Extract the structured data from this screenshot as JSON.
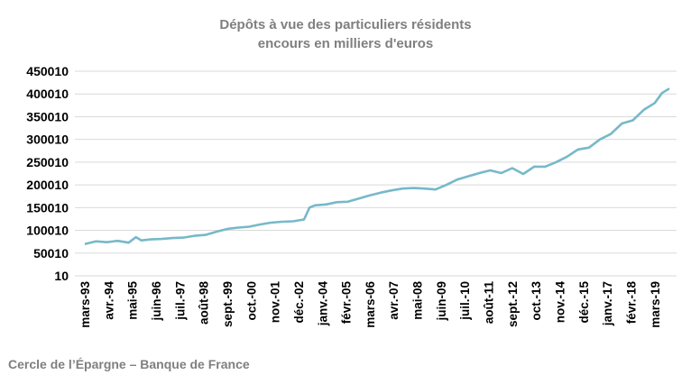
{
  "chart_data": {
    "type": "line",
    "title": "Dépôts à vue des particuliers résidents",
    "subtitle": "encours en milliers d'euros",
    "xlabel": "",
    "ylabel": "",
    "ylim": [
      10,
      450010
    ],
    "yticks": [
      "10",
      "50010",
      "100010",
      "150010",
      "200010",
      "250010",
      "300010",
      "350010",
      "400010",
      "450010"
    ],
    "xtick_labels": [
      "mars-93",
      "avr.-94",
      "mai-95",
      "juin-96",
      "juil.-97",
      "août-98",
      "sept.-99",
      "oct.-00",
      "nov.-01",
      "déc.-02",
      "janv.-04",
      "févr.-05",
      "mars-06",
      "avr.-07",
      "mai-08",
      "juin-09",
      "juil.-10",
      "août-11",
      "sept.-12",
      "oct.-13",
      "nov.-14",
      "déc.-15",
      "janv.-17",
      "févr.-18",
      "mars-19"
    ],
    "grid": true,
    "legend": "none",
    "line_color": "#76b9c9",
    "series": [
      {
        "x": [
          "1993-03",
          "1993-09",
          "1994-03",
          "1994-09",
          "1995-03",
          "1995-07",
          "1995-10",
          "1996-03",
          "1996-09",
          "1997-03",
          "1997-09",
          "1998-03",
          "1998-09",
          "1999-03",
          "1999-09",
          "2000-03",
          "2000-09",
          "2001-03",
          "2001-09",
          "2002-03",
          "2002-09",
          "2003-03",
          "2003-06",
          "2003-09",
          "2004-03",
          "2004-09",
          "2005-03",
          "2005-09",
          "2006-03",
          "2006-09",
          "2007-03",
          "2007-09",
          "2008-03",
          "2008-09",
          "2009-03",
          "2009-09",
          "2010-03",
          "2010-09",
          "2011-03",
          "2011-09",
          "2012-03",
          "2012-09",
          "2013-03",
          "2013-09",
          "2014-03",
          "2014-09",
          "2015-03",
          "2015-09",
          "2016-03",
          "2016-09",
          "2017-03",
          "2017-09",
          "2018-03",
          "2018-09",
          "2019-03",
          "2019-07",
          "2019-11"
        ],
        "values": [
          70000,
          76000,
          74000,
          77000,
          73000,
          85000,
          78000,
          80000,
          81000,
          83000,
          84000,
          88000,
          90000,
          97000,
          103000,
          106000,
          108000,
          113000,
          117000,
          119000,
          120000,
          124000,
          150000,
          155000,
          157000,
          162000,
          163000,
          170000,
          177000,
          183000,
          188000,
          192000,
          193000,
          192000,
          190000,
          200000,
          212000,
          219000,
          226000,
          232000,
          226000,
          237000,
          224000,
          240000,
          240000,
          250000,
          262000,
          278000,
          282000,
          300000,
          312000,
          335000,
          342000,
          365000,
          380000,
          402000,
          412000
        ]
      }
    ]
  },
  "source": "Cercle de l’Épargne – Banque de France"
}
